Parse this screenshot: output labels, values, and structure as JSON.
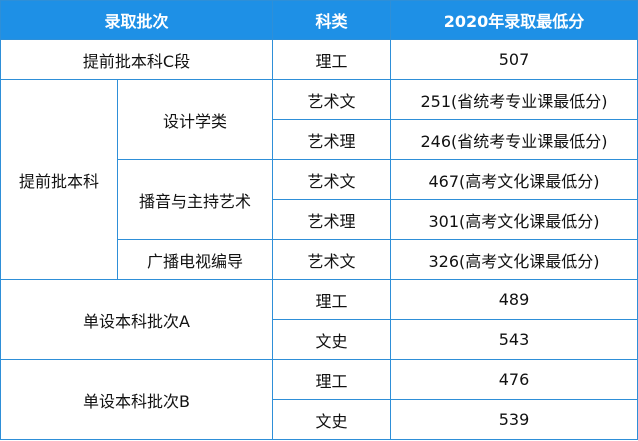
{
  "header": {
    "batch": "录取批次",
    "subject": "科类",
    "score": "2020年录取最低分"
  },
  "rows": {
    "r1": {
      "batch": "提前批本科C段",
      "subject": "理工",
      "score": "507"
    },
    "r2": {
      "batch": "提前批本科",
      "majors": {
        "design": "设计学类",
        "broadcast": "播音与主持艺术",
        "radio_tv": "广播电视编导"
      },
      "design_art": {
        "subject": "艺术文",
        "score": "251(省统考专业课最低分)"
      },
      "design_sci": {
        "subject": "艺术理",
        "score": "246(省统考专业课最低分)"
      },
      "broadcast_art": {
        "subject": "艺术文",
        "score": "467(高考文化课最低分)"
      },
      "broadcast_sci": {
        "subject": "艺术理",
        "score": "301(高考文化课最低分)"
      },
      "radio_tv_art": {
        "subject": "艺术文",
        "score": "326(高考文化课最低分)"
      }
    },
    "r3": {
      "batch": "单设本科批次A",
      "sci": {
        "subject": "理工",
        "score": "489"
      },
      "lib": {
        "subject": "文史",
        "score": "543"
      }
    },
    "r4": {
      "batch": "单设本科批次B",
      "sci": {
        "subject": "理工",
        "score": "476"
      },
      "lib": {
        "subject": "文史",
        "score": "539"
      }
    }
  },
  "colors": {
    "header_bg": "#1e90e6",
    "header_text": "#ffffff",
    "border": "#2e8fd8"
  }
}
